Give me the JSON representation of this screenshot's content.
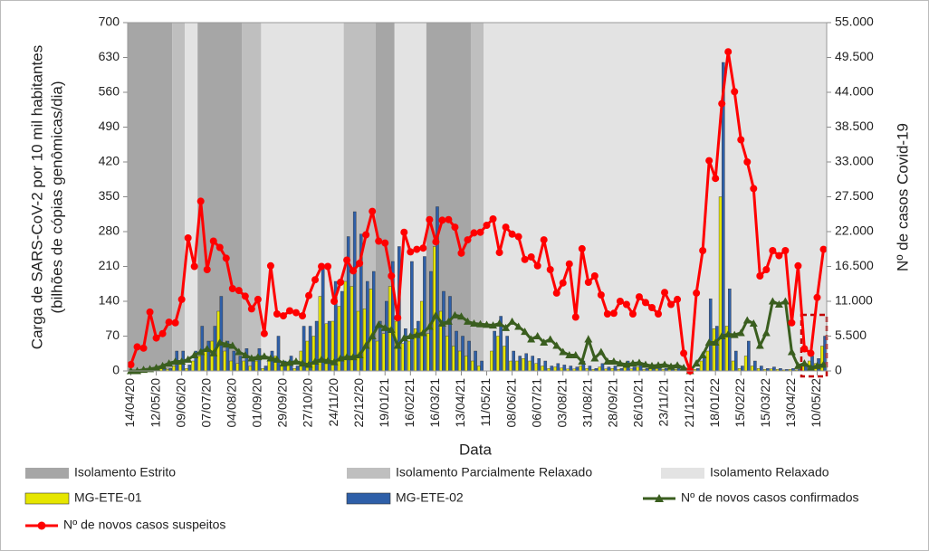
{
  "chart_data": {
    "type": "combo",
    "xlabel": "Data",
    "ylabel": [
      "Carga de SARS-CoV-2 por 10 mil habitantes",
      "(bilhões de cópias genômicas/dia)"
    ],
    "y2label": "Nº de casos Covid-19",
    "ylim": [
      0,
      700
    ],
    "yticks": [
      0,
      70,
      140,
      210,
      280,
      350,
      420,
      490,
      560,
      630,
      700
    ],
    "y2lim": [
      0,
      55000
    ],
    "y2ticks": [
      0,
      {
        "value": 5500,
        "label": "5.500"
      },
      {
        "value": 11000,
        "label": "11.000"
      },
      {
        "value": 16500,
        "label": "16.500"
      },
      {
        "value": 22000,
        "label": "22.000"
      },
      {
        "value": 27500,
        "label": "27.500"
      },
      {
        "value": 33000,
        "label": "33.000"
      },
      {
        "value": 38500,
        "label": "38.500"
      },
      {
        "value": 44000,
        "label": "44.000"
      },
      {
        "value": 49500,
        "label": "49.500"
      },
      {
        "value": 55000,
        "label": "55.000"
      }
    ],
    "categories": [
      "14/04/20",
      null,
      null,
      null,
      "12/05/20",
      null,
      null,
      null,
      "09/06/20",
      null,
      null,
      null,
      "07/07/20",
      null,
      null,
      null,
      "04/08/20",
      null,
      null,
      null,
      "01/09/20",
      null,
      null,
      null,
      "29/09/20",
      null,
      null,
      null,
      "27/10/20",
      null,
      null,
      null,
      "24/11/20",
      null,
      null,
      null,
      "22/12/20",
      null,
      null,
      null,
      "19/01/21",
      null,
      null,
      null,
      "16/02/21",
      null,
      null,
      null,
      "16/03/21",
      null,
      null,
      null,
      "13/04/21",
      null,
      null,
      null,
      "11/05/21",
      null,
      null,
      null,
      "08/06/21",
      null,
      null,
      null,
      "06/07/21",
      null,
      null,
      null,
      "03/08/21",
      null,
      null,
      null,
      "31/08/21",
      null,
      null,
      null,
      "28/09/21",
      null,
      null,
      null,
      "26/10/21",
      null,
      null,
      null,
      "23/11/21",
      null,
      null,
      null,
      "21/12/21",
      null,
      null,
      null,
      "18/01/22",
      null,
      null,
      null,
      "15/02/22",
      null,
      null,
      null,
      "15/03/22",
      null,
      null,
      null,
      "13/04/22",
      null,
      null,
      null,
      "10/05/22",
      null
    ],
    "phases": [
      {
        "name": "Isolamento Estrito",
        "color": "#a6a6a6"
      },
      {
        "name": "Isolamento Parcialmente Relaxado",
        "color": "#bfbfbf"
      },
      {
        "name": "Isolamento Relaxado",
        "color": "#e3e3e3"
      }
    ],
    "regions": [
      {
        "phase": 0,
        "from": 0,
        "to": 7
      },
      {
        "phase": 1,
        "from": 7,
        "to": 9
      },
      {
        "phase": 2,
        "from": 9,
        "to": 11
      },
      {
        "phase": 0,
        "from": 11,
        "to": 18
      },
      {
        "phase": 1,
        "from": 18,
        "to": 21
      },
      {
        "phase": 2,
        "from": 21,
        "to": 34
      },
      {
        "phase": 1,
        "from": 34,
        "to": 39
      },
      {
        "phase": 0,
        "from": 39,
        "to": 42
      },
      {
        "phase": 2,
        "from": 42,
        "to": 47
      },
      {
        "phase": 0,
        "from": 47,
        "to": 54
      },
      {
        "phase": 1,
        "from": 54,
        "to": 56
      },
      {
        "phase": 2,
        "from": 56,
        "to": 110
      }
    ],
    "series": [
      {
        "name": "MG-ETE-01",
        "kind": "bar",
        "axis": "y",
        "color": "#e6e600",
        "values": [
          null,
          0,
          2,
          3,
          4,
          5,
          3,
          10,
          15,
          5,
          20,
          30,
          40,
          60,
          120,
          40,
          20,
          15,
          20,
          10,
          20,
          5,
          20,
          30,
          10,
          15,
          5,
          40,
          60,
          70,
          150,
          95,
          100,
          130,
          180,
          170,
          120,
          125,
          165,
          60,
          75,
          170,
          100,
          55,
          60,
          85,
          140,
          75,
          250,
          120,
          70,
          50,
          40,
          30,
          20,
          10,
          null,
          40,
          70,
          50,
          20,
          20,
          25,
          20,
          15,
          10,
          5,
          8,
          6,
          4,
          4,
          10,
          5,
          3,
          8,
          4,
          5,
          3,
          10,
          4,
          8,
          3,
          5,
          4,
          3,
          5,
          3,
          1,
          0,
          3,
          20,
          40,
          85,
          350,
          90,
          20,
          5,
          30,
          10,
          5,
          3,
          4,
          3,
          2,
          3,
          2,
          10,
          20,
          15,
          50
        ]
      },
      {
        "name": "MG-ETE-02",
        "kind": "bar",
        "axis": "y",
        "color": "#2e5fa8",
        "values": [
          null,
          2,
          4,
          5,
          8,
          10,
          5,
          40,
          40,
          12,
          40,
          90,
          60,
          90,
          150,
          60,
          40,
          30,
          45,
          20,
          45,
          10,
          40,
          70,
          20,
          30,
          10,
          90,
          90,
          100,
          210,
          100,
          180,
          160,
          270,
          320,
          275,
          180,
          200,
          100,
          140,
          220,
          250,
          85,
          220,
          100,
          230,
          200,
          330,
          160,
          150,
          80,
          70,
          60,
          40,
          20,
          null,
          80,
          110,
          70,
          40,
          30,
          35,
          30,
          25,
          20,
          10,
          15,
          12,
          10,
          8,
          20,
          10,
          5,
          15,
          8,
          10,
          5,
          20,
          8,
          15,
          5,
          10,
          8,
          5,
          10,
          5,
          2,
          0,
          5,
          30,
          145,
          90,
          620,
          165,
          40,
          10,
          60,
          20,
          10,
          5,
          8,
          5,
          3,
          5,
          3,
          15,
          30,
          25,
          70
        ]
      },
      {
        "name": "Nº de novos casos confirmados",
        "kind": "line",
        "marker": "triangle",
        "axis": "y2",
        "color": "#3a5e1f",
        "values": [
          0,
          0,
          200,
          300,
          500,
          800,
          1200,
          1500,
          1500,
          1800,
          2500,
          3000,
          3500,
          2800,
          4500,
          4200,
          4000,
          3000,
          2500,
          2000,
          2200,
          2300,
          2000,
          1800,
          1200,
          1300,
          1500,
          1200,
          1000,
          1500,
          1800,
          1600,
          1400,
          2000,
          2200,
          2200,
          2500,
          4000,
          5500,
          7300,
          6800,
          6500,
          4000,
          5200,
          5500,
          5700,
          6000,
          7000,
          8800,
          7500,
          7800,
          8800,
          8600,
          7800,
          7500,
          7400,
          7300,
          7200,
          7500,
          6800,
          7800,
          7000,
          6200,
          5000,
          5500,
          4500,
          5000,
          4000,
          3000,
          2500,
          2500,
          1500,
          5000,
          2000,
          3000,
          1500,
          1500,
          1200,
          1000,
          1200,
          1300,
          1000,
          800,
          900,
          1000,
          700,
          900,
          500,
          0,
          1200,
          2500,
          4500,
          4500,
          5500,
          5800,
          5700,
          6000,
          8000,
          7500,
          4000,
          6000,
          11000,
          10500,
          11000,
          3000,
          800,
          1200,
          500,
          800,
          1000
        ]
      },
      {
        "name": "Nº de novos casos suspeitos",
        "kind": "line",
        "marker": "circle",
        "axis": "y2",
        "color": "#ff0000",
        "values": [
          1000,
          3800,
          3600,
          9300,
          5200,
          5900,
          7700,
          7600,
          11300,
          21000,
          16500,
          26800,
          16000,
          20500,
          19500,
          17800,
          13000,
          12700,
          11800,
          9800,
          11300,
          5900,
          16600,
          9000,
          8700,
          9500,
          9200,
          8700,
          11900,
          14400,
          16500,
          16500,
          11000,
          14000,
          17500,
          15800,
          17000,
          21500,
          25200,
          20500,
          20200,
          15000,
          8400,
          21900,
          18800,
          19200,
          19400,
          23900,
          20400,
          23800,
          23900,
          22700,
          18600,
          20700,
          21800,
          21900,
          23000,
          24000,
          18700,
          22700,
          21600,
          21200,
          17600,
          18000,
          16600,
          20700,
          16000,
          12300,
          13900,
          16900,
          8500,
          19300,
          14000,
          15000,
          12000,
          9000,
          9100,
          11000,
          10500,
          9000,
          11700,
          10800,
          10000,
          9000,
          12400,
          10500,
          11300,
          2800,
          0,
          12300,
          19000,
          33200,
          30400,
          42200,
          50400,
          44100,
          36500,
          33000,
          28800,
          15000,
          16000,
          19000,
          18200,
          19000,
          7600,
          16600,
          3500,
          2800,
          11600,
          19200
        ]
      }
    ]
  }
}
